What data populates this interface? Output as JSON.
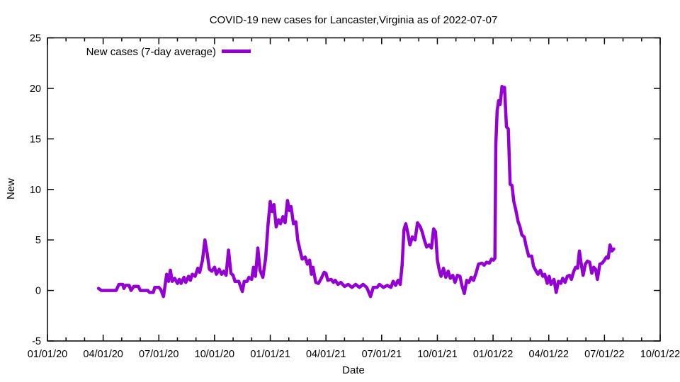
{
  "chart_data": {
    "type": "line",
    "title": "COVID-19 new cases for Lancaster,Virginia as of 2022-07-07",
    "xlabel": "Date",
    "ylabel": "New",
    "legend": "New cases (7-day average)",
    "legend_position": "top-left-inside",
    "grid": false,
    "background_color": "#ffffff",
    "border_color": "#000000",
    "line_color": "#9400d3",
    "line_width": 4.5,
    "ylim": [
      -5,
      25
    ],
    "y_ticks": [
      -5,
      0,
      5,
      10,
      15,
      20,
      25
    ],
    "xlim_months_from_2020_01_01": [
      0,
      33
    ],
    "x_major_tick_every_months": 3,
    "x_minor_tick_every_months": 1,
    "x_tick_labels": [
      "01/01/20",
      "04/01/20",
      "07/01/20",
      "10/01/20",
      "01/01/21",
      "04/01/21",
      "07/01/21",
      "10/01/21",
      "01/01/22",
      "04/01/22",
      "07/01/22",
      "10/01/22"
    ],
    "series": [
      {
        "name": "New cases (7-day average)",
        "color": "#9400d3",
        "points_month_value": [
          [
            2.75,
            0.2
          ],
          [
            2.9,
            0.0
          ],
          [
            3.7,
            0.0
          ],
          [
            3.85,
            0.6
          ],
          [
            4.05,
            0.6
          ],
          [
            4.12,
            0.2
          ],
          [
            4.2,
            0.5
          ],
          [
            4.4,
            0.5
          ],
          [
            4.5,
            0.0
          ],
          [
            4.65,
            0.4
          ],
          [
            4.9,
            0.4
          ],
          [
            5.0,
            0.0
          ],
          [
            5.4,
            0.0
          ],
          [
            5.5,
            -0.2
          ],
          [
            5.7,
            -0.2
          ],
          [
            5.78,
            0.3
          ],
          [
            6.0,
            0.3
          ],
          [
            6.1,
            0.1
          ],
          [
            6.25,
            -0.6
          ],
          [
            6.42,
            1.6
          ],
          [
            6.52,
            0.9
          ],
          [
            6.62,
            2.0
          ],
          [
            6.72,
            0.9
          ],
          [
            6.85,
            1.2
          ],
          [
            7.0,
            0.7
          ],
          [
            7.1,
            1.1
          ],
          [
            7.2,
            0.7
          ],
          [
            7.35,
            1.3
          ],
          [
            7.45,
            0.8
          ],
          [
            7.6,
            1.4
          ],
          [
            7.7,
            1.0
          ],
          [
            7.8,
            1.6
          ],
          [
            7.95,
            1.4
          ],
          [
            8.1,
            2.2
          ],
          [
            8.2,
            1.8
          ],
          [
            8.35,
            3.0
          ],
          [
            8.48,
            5.0
          ],
          [
            8.6,
            3.7
          ],
          [
            8.72,
            2.1
          ],
          [
            8.85,
            1.9
          ],
          [
            9.0,
            2.3
          ],
          [
            9.1,
            1.6
          ],
          [
            9.25,
            2.1
          ],
          [
            9.38,
            1.6
          ],
          [
            9.5,
            1.9
          ],
          [
            9.62,
            1.5
          ],
          [
            9.75,
            4.0
          ],
          [
            9.88,
            1.7
          ],
          [
            10.0,
            1.5
          ],
          [
            10.1,
            0.9
          ],
          [
            10.3,
            0.9
          ],
          [
            10.42,
            0.3
          ],
          [
            10.5,
            -0.1
          ],
          [
            10.6,
            0.9
          ],
          [
            10.75,
            0.9
          ],
          [
            10.85,
            1.3
          ],
          [
            11.0,
            1.1
          ],
          [
            11.1,
            2.3
          ],
          [
            11.2,
            1.4
          ],
          [
            11.33,
            4.2
          ],
          [
            11.45,
            2.0
          ],
          [
            11.6,
            1.3
          ],
          [
            11.75,
            3.2
          ],
          [
            11.88,
            6.5
          ],
          [
            12.0,
            8.8
          ],
          [
            12.1,
            7.8
          ],
          [
            12.2,
            8.5
          ],
          [
            12.32,
            6.3
          ],
          [
            12.45,
            7.0
          ],
          [
            12.55,
            6.6
          ],
          [
            12.68,
            7.3
          ],
          [
            12.8,
            6.7
          ],
          [
            12.93,
            8.9
          ],
          [
            13.03,
            7.9
          ],
          [
            13.12,
            8.3
          ],
          [
            13.25,
            6.6
          ],
          [
            13.38,
            6.8
          ],
          [
            13.48,
            5.0
          ],
          [
            13.6,
            4.0
          ],
          [
            13.72,
            3.1
          ],
          [
            13.88,
            3.3
          ],
          [
            14.0,
            2.6
          ],
          [
            14.12,
            3.0
          ],
          [
            14.22,
            1.6
          ],
          [
            14.3,
            2.3
          ],
          [
            14.45,
            0.8
          ],
          [
            14.6,
            0.7
          ],
          [
            14.75,
            1.2
          ],
          [
            14.9,
            1.8
          ],
          [
            15.0,
            1.7
          ],
          [
            15.1,
            1.0
          ],
          [
            15.28,
            1.1
          ],
          [
            15.4,
            0.8
          ],
          [
            15.5,
            1.0
          ],
          [
            15.65,
            0.6
          ],
          [
            15.8,
            0.8
          ],
          [
            16.0,
            0.4
          ],
          [
            16.2,
            0.6
          ],
          [
            16.4,
            0.3
          ],
          [
            16.6,
            0.6
          ],
          [
            16.8,
            0.3
          ],
          [
            17.0,
            0.6
          ],
          [
            17.2,
            0.3
          ],
          [
            17.4,
            -0.6
          ],
          [
            17.55,
            0.3
          ],
          [
            17.75,
            0.3
          ],
          [
            17.88,
            0.6
          ],
          [
            18.1,
            0.3
          ],
          [
            18.3,
            0.5
          ],
          [
            18.5,
            0.3
          ],
          [
            18.62,
            0.9
          ],
          [
            18.75,
            0.5
          ],
          [
            18.88,
            1.0
          ],
          [
            19.0,
            0.6
          ],
          [
            19.1,
            2.5
          ],
          [
            19.2,
            6.0
          ],
          [
            19.3,
            6.6
          ],
          [
            19.42,
            5.6
          ],
          [
            19.52,
            4.5
          ],
          [
            19.65,
            5.3
          ],
          [
            19.8,
            5.0
          ],
          [
            19.93,
            6.7
          ],
          [
            20.08,
            6.3
          ],
          [
            20.18,
            5.8
          ],
          [
            20.3,
            5.0
          ],
          [
            20.42,
            4.3
          ],
          [
            20.55,
            4.5
          ],
          [
            20.68,
            4.2
          ],
          [
            20.8,
            6.1
          ],
          [
            20.9,
            5.8
          ],
          [
            21.0,
            3.0
          ],
          [
            21.1,
            2.0
          ],
          [
            21.2,
            1.4
          ],
          [
            21.33,
            2.2
          ],
          [
            21.45,
            1.3
          ],
          [
            21.58,
            1.9
          ],
          [
            21.7,
            1.2
          ],
          [
            21.83,
            1.5
          ],
          [
            21.95,
            0.8
          ],
          [
            22.08,
            1.5
          ],
          [
            22.22,
            1.4
          ],
          [
            22.32,
            0.5
          ],
          [
            22.45,
            -0.3
          ],
          [
            22.58,
            1.0
          ],
          [
            22.7,
            0.8
          ],
          [
            22.82,
            1.3
          ],
          [
            22.95,
            1.0
          ],
          [
            23.08,
            1.7
          ],
          [
            23.22,
            2.6
          ],
          [
            23.4,
            2.7
          ],
          [
            23.52,
            2.5
          ],
          [
            23.65,
            2.8
          ],
          [
            23.8,
            2.7
          ],
          [
            23.92,
            3.1
          ],
          [
            24.02,
            3.0
          ],
          [
            24.1,
            3.2
          ],
          [
            24.15,
            14.5
          ],
          [
            24.22,
            17.8
          ],
          [
            24.3,
            18.8
          ],
          [
            24.38,
            18.4
          ],
          [
            24.48,
            20.2
          ],
          [
            24.56,
            19.7
          ],
          [
            24.62,
            20.1
          ],
          [
            24.72,
            16.2
          ],
          [
            24.82,
            16.0
          ],
          [
            24.92,
            10.5
          ],
          [
            25.02,
            10.4
          ],
          [
            25.12,
            8.8
          ],
          [
            25.22,
            8.0
          ],
          [
            25.35,
            6.8
          ],
          [
            25.45,
            6.3
          ],
          [
            25.55,
            5.5
          ],
          [
            25.68,
            5.3
          ],
          [
            25.78,
            4.4
          ],
          [
            25.92,
            3.4
          ],
          [
            26.08,
            3.4
          ],
          [
            26.18,
            2.4
          ],
          [
            26.32,
            1.9
          ],
          [
            26.42,
            1.6
          ],
          [
            26.55,
            2.0
          ],
          [
            26.68,
            1.4
          ],
          [
            26.78,
            1.6
          ],
          [
            26.92,
            0.7
          ],
          [
            27.02,
            1.4
          ],
          [
            27.12,
            0.6
          ],
          [
            27.28,
            1.1
          ],
          [
            27.4,
            -0.2
          ],
          [
            27.52,
            0.9
          ],
          [
            27.65,
            0.7
          ],
          [
            27.75,
            1.2
          ],
          [
            27.88,
            0.8
          ],
          [
            28.0,
            1.4
          ],
          [
            28.12,
            1.5
          ],
          [
            28.22,
            1.1
          ],
          [
            28.35,
            1.9
          ],
          [
            28.45,
            2.3
          ],
          [
            28.55,
            2.2
          ],
          [
            28.65,
            3.9
          ],
          [
            28.75,
            2.6
          ],
          [
            28.85,
            1.5
          ],
          [
            28.97,
            2.6
          ],
          [
            29.08,
            2.9
          ],
          [
            29.2,
            2.8
          ],
          [
            29.32,
            1.7
          ],
          [
            29.42,
            2.3
          ],
          [
            29.52,
            2.1
          ],
          [
            29.62,
            1.1
          ],
          [
            29.75,
            2.6
          ],
          [
            29.88,
            2.7
          ],
          [
            30.0,
            3.0
          ],
          [
            30.1,
            3.3
          ],
          [
            30.2,
            3.2
          ],
          [
            30.3,
            4.5
          ],
          [
            30.4,
            3.9
          ],
          [
            30.5,
            4.1
          ]
        ]
      }
    ]
  }
}
